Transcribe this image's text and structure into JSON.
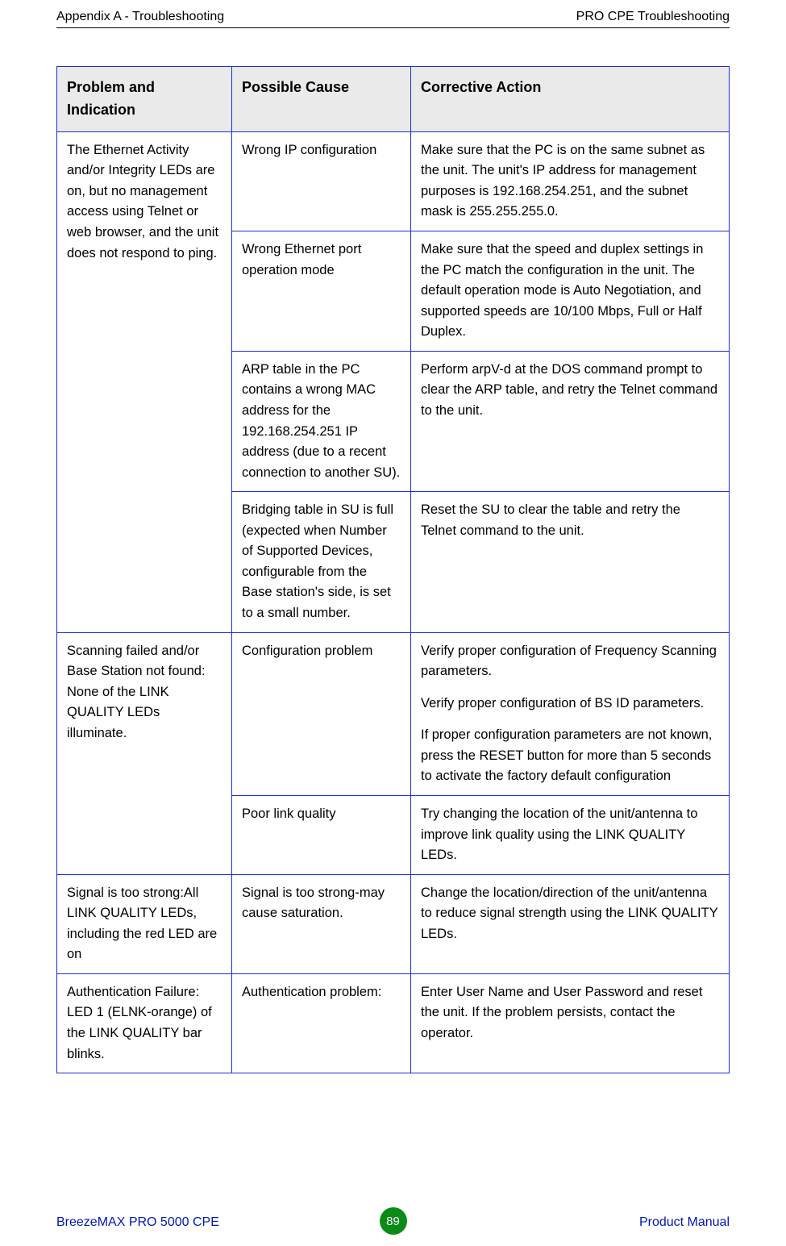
{
  "header": {
    "left": "Appendix A - Troubleshooting",
    "right": "PRO CPE Troubleshooting"
  },
  "table": {
    "headers": {
      "problem": "Problem and Indication",
      "cause": "Possible Cause",
      "action": "Corrective Action"
    },
    "group1": {
      "problem": "The Ethernet Activity and/or Integrity LEDs are on, but no management access using Telnet or web browser, and the unit does not respond to ping.",
      "r1": {
        "cause": "Wrong IP configuration",
        "action": "Make sure that the PC is on the same subnet as the unit. The unit's IP address for management purposes is 192.168.254.251, and the subnet mask is 255.255.255.0."
      },
      "r2": {
        "cause": "Wrong Ethernet port operation mode",
        "action": "Make sure that the speed and duplex settings in the PC match the configuration in the unit. The default operation mode is Auto Negotiation, and supported speeds are 10/100 Mbps, Full or Half Duplex."
      },
      "r3": {
        "cause": "ARP table in the PC contains a wrong MAC address for the 192.168.254.251 IP address (due to a recent connection to another SU).",
        "action": "Perform arpV-d at the DOS command prompt to clear the ARP table, and retry the Telnet command to the unit."
      },
      "r4": {
        "cause": "Bridging table in SU is full (expected when Number of Supported Devices, configurable from the Base station's side, is set to a small number.",
        "action": "Reset the SU to clear the table and retry the Telnet command to the unit."
      }
    },
    "group2": {
      "problem": "Scanning failed and/or Base Station not found: None of the LINK QUALITY LEDs illuminate.",
      "r1": {
        "cause": "Configuration problem",
        "action_p1": "Verify proper configuration of Frequency Scanning parameters.",
        "action_p2": "Verify proper configuration of BS ID parameters.",
        "action_p3": "If proper configuration parameters are not known, press the RESET button for more than 5 seconds to activate the factory default configuration"
      },
      "r2": {
        "cause": "Poor link quality",
        "action": "Try changing the location of the unit/antenna to improve link quality using the LINK QUALITY LEDs."
      }
    },
    "group3": {
      "problem": "Signal is too strong:All LINK QUALITY LEDs, including the red LED are on",
      "cause": "Signal is too strong-may cause saturation.",
      "action": "Change the location/direction of the unit/antenna to reduce signal strength using the LINK QUALITY LEDs."
    },
    "group4": {
      "problem": "Authentication Failure: LED 1 (ELNK-orange) of the LINK QUALITY bar blinks.",
      "cause": "Authentication problem:",
      "action": "Enter User Name and User Password and reset the unit. If the problem persists, contact the operator."
    }
  },
  "footer": {
    "left": "BreezeMAX PRO 5000 CPE",
    "page": "89",
    "right": "Product Manual"
  },
  "style": {
    "border_color": "#1a2fd6",
    "header_bg": "#eaeaea",
    "badge_bg": "#0b8a18",
    "link_color": "#0016b8"
  }
}
